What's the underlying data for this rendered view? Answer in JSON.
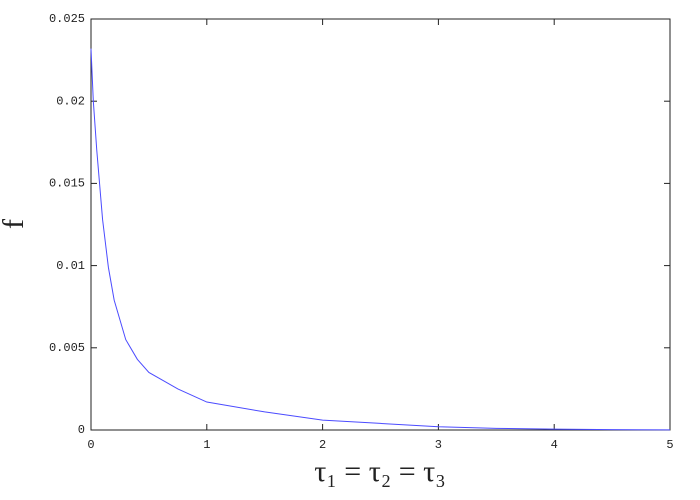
{
  "chart_data": {
    "type": "line",
    "x_label": "τ₁ = τ₂ = τ₃",
    "y_label": "f",
    "x": [
      0,
      0.02,
      0.05,
      0.1,
      0.15,
      0.2,
      0.3,
      0.4,
      0.5,
      0.75,
      1,
      1.5,
      2,
      2.5,
      3,
      3.5,
      4,
      4.5,
      5
    ],
    "series": [
      {
        "color": "#4b4bff",
        "values": [
          0.0232,
          0.02,
          0.017,
          0.0128,
          0.0099,
          0.0079,
          0.0055,
          0.0043,
          0.0035,
          0.0025,
          0.0017,
          0.0011,
          0.0006,
          0.0004,
          0.0002,
          0.0001,
          5e-05,
          2e-05,
          1e-05
        ]
      }
    ],
    "xlim": [
      0,
      5
    ],
    "ylim": [
      0,
      0.025
    ],
    "xticks": [
      0,
      1,
      2,
      3,
      4,
      5
    ],
    "yticks": [
      0,
      0.005,
      0.01,
      0.015,
      0.02,
      0.025
    ],
    "grid": false
  }
}
